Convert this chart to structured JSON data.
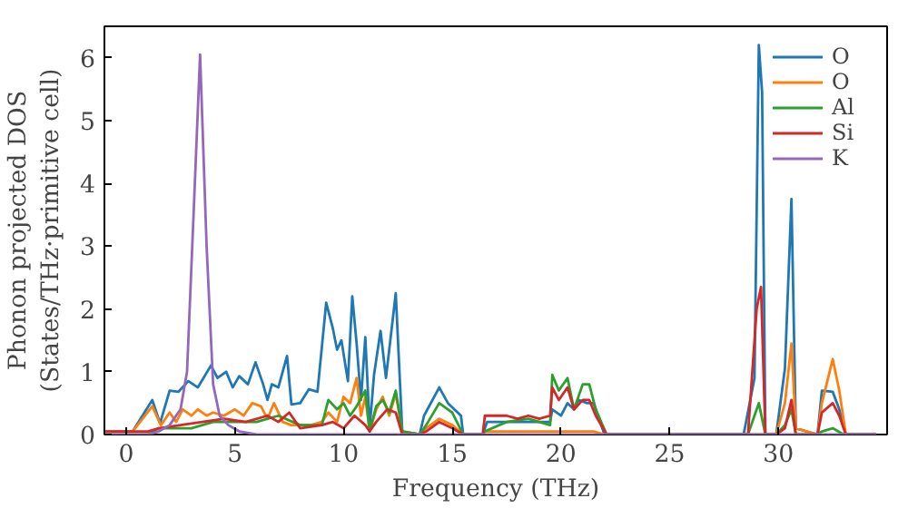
{
  "chart_data": {
    "type": "line",
    "xlabel": "Frequency (THz)",
    "ylabel": "Phonon projected DOS\n(States/THz·primitive cell)",
    "xlim": [
      -1,
      35
    ],
    "ylim": [
      0,
      6.5
    ],
    "xticks": [
      0,
      5,
      10,
      15,
      20,
      25,
      30
    ],
    "yticks": [
      0,
      1,
      2,
      3,
      4,
      5,
      6
    ],
    "grid": false,
    "legend": "top right",
    "marker": "none",
    "line_style": "solid",
    "series": [
      {
        "name": "O",
        "color": "#1f77b4",
        "x": [
          -0.95,
          0.3,
          1.2,
          1.56,
          2.0,
          2.4,
          2.86,
          3.3,
          3.9,
          4.2,
          4.6,
          4.9,
          5.2,
          5.6,
          5.95,
          6.3,
          6.5,
          6.7,
          7.0,
          7.4,
          7.6,
          8.0,
          8.4,
          8.8,
          9.2,
          9.5,
          9.7,
          9.9,
          10.2,
          10.4,
          10.6,
          10.8,
          11.0,
          11.2,
          11.4,
          11.7,
          11.95,
          12.4,
          12.7,
          13.5,
          13.7,
          14.4,
          14.8,
          15.4,
          15.5,
          16.4,
          16.6,
          17.5,
          18.5,
          19.5,
          19.6,
          20.0,
          20.3,
          20.6,
          20.8,
          21.2,
          21.5,
          22.0,
          28.4,
          28.9,
          29.1,
          29.25,
          29.4,
          29.9,
          30.3,
          30.6,
          30.8,
          31.8,
          32.0,
          32.5,
          32.8,
          33.1,
          34.5
        ],
        "values": [
          0.05,
          0.05,
          0.55,
          0.18,
          0.7,
          0.68,
          0.85,
          0.75,
          1.1,
          0.9,
          1.0,
          0.75,
          0.93,
          0.8,
          1.15,
          0.8,
          0.55,
          0.8,
          0.75,
          1.25,
          0.48,
          0.5,
          0.72,
          0.68,
          2.1,
          1.7,
          1.35,
          1.5,
          0.85,
          2.2,
          1.45,
          0.55,
          1.55,
          0.1,
          0.95,
          1.65,
          0.9,
          2.25,
          0.05,
          0.0,
          0.3,
          0.75,
          0.5,
          0.3,
          0.0,
          0.0,
          0.2,
          0.2,
          0.2,
          0.2,
          0.4,
          0.3,
          0.5,
          0.4,
          0.55,
          0.5,
          0.5,
          0.0,
          0.0,
          0.9,
          6.2,
          5.45,
          0.0,
          0.0,
          1.05,
          3.75,
          0.1,
          0.0,
          0.7,
          0.68,
          0.4,
          0.0,
          0.0
        ]
      },
      {
        "name": "O",
        "color": "#ff7f0e",
        "x": [
          -0.95,
          0.3,
          1.2,
          1.6,
          2.0,
          2.3,
          2.6,
          3.0,
          3.3,
          3.7,
          4.0,
          4.5,
          5.0,
          5.4,
          5.8,
          6.2,
          6.5,
          6.8,
          7.2,
          7.6,
          8.5,
          9.0,
          9.3,
          9.7,
          10.0,
          10.3,
          10.6,
          10.8,
          11.0,
          11.2,
          11.5,
          11.8,
          12.1,
          12.4,
          12.7,
          13.5,
          13.8,
          14.4,
          15.0,
          15.5,
          16.4,
          16.5,
          19.5,
          20.0,
          21.5,
          22.0,
          29.9,
          30.3,
          30.6,
          30.8,
          31.8,
          32.0,
          32.5,
          32.8,
          33.1,
          34.5
        ],
        "values": [
          0.05,
          0.05,
          0.45,
          0.15,
          0.35,
          0.2,
          0.4,
          0.3,
          0.4,
          0.3,
          0.35,
          0.3,
          0.4,
          0.3,
          0.5,
          0.45,
          0.25,
          0.5,
          0.2,
          0.15,
          0.15,
          0.2,
          0.35,
          0.2,
          0.6,
          0.5,
          0.9,
          0.3,
          0.6,
          0.05,
          0.4,
          0.6,
          0.3,
          0.65,
          0.05,
          0.0,
          0.1,
          0.25,
          0.15,
          0.0,
          0.0,
          0.05,
          0.05,
          0.05,
          0.05,
          0.0,
          0.0,
          0.5,
          1.45,
          0.1,
          0.0,
          0.5,
          1.2,
          0.7,
          0.0,
          0.0
        ]
      },
      {
        "name": "Al",
        "color": "#2ca02c",
        "x": [
          -0.95,
          1.0,
          1.5,
          3.0,
          4.0,
          5.0,
          6.0,
          7.0,
          8.0,
          9.0,
          9.3,
          9.7,
          10.0,
          10.3,
          10.6,
          11.0,
          11.2,
          11.5,
          11.8,
          12.1,
          12.4,
          12.7,
          13.5,
          13.8,
          14.4,
          15.0,
          15.5,
          16.4,
          16.5,
          17.5,
          18.5,
          19.5,
          19.6,
          19.9,
          20.3,
          20.6,
          21.0,
          21.3,
          21.6,
          22.1,
          28.6,
          29.1,
          29.4,
          29.9,
          30.3,
          30.6,
          30.8,
          31.8,
          32.0,
          32.5,
          33.0,
          34.5
        ],
        "values": [
          0.0,
          0.0,
          0.1,
          0.1,
          0.2,
          0.2,
          0.2,
          0.3,
          0.15,
          0.15,
          0.55,
          0.4,
          0.5,
          0.3,
          0.45,
          0.7,
          0.05,
          0.45,
          0.55,
          0.35,
          0.7,
          0.05,
          0.0,
          0.15,
          0.5,
          0.35,
          0.0,
          0.0,
          0.05,
          0.2,
          0.25,
          0.15,
          0.95,
          0.7,
          0.9,
          0.4,
          0.8,
          0.8,
          0.4,
          0.0,
          0.0,
          0.5,
          0.0,
          0.0,
          0.15,
          0.4,
          0.0,
          0.0,
          0.05,
          0.1,
          0.0,
          0.0
        ]
      },
      {
        "name": "Si",
        "color": "#d62728",
        "x": [
          -0.95,
          1.0,
          1.5,
          2.5,
          3.5,
          4.5,
          5.5,
          6.5,
          7.0,
          7.5,
          8.0,
          9.0,
          9.5,
          10.0,
          10.5,
          11.0,
          11.2,
          11.5,
          12.0,
          12.4,
          12.7,
          13.5,
          13.8,
          14.4,
          15.0,
          15.5,
          16.4,
          16.5,
          17.0,
          17.5,
          18.0,
          18.5,
          19.0,
          19.5,
          19.6,
          19.9,
          20.3,
          20.6,
          21.0,
          21.3,
          21.6,
          22.1,
          28.6,
          29.0,
          29.2,
          29.4,
          29.9,
          30.3,
          30.6,
          30.8,
          31.8,
          32.0,
          32.5,
          32.8,
          33.1,
          34.5
        ],
        "values": [
          0.05,
          0.05,
          0.1,
          0.15,
          0.2,
          0.25,
          0.2,
          0.3,
          0.2,
          0.35,
          0.1,
          0.15,
          0.2,
          0.1,
          0.3,
          0.15,
          0.05,
          0.2,
          0.4,
          0.35,
          0.0,
          0.0,
          0.05,
          0.2,
          0.1,
          0.0,
          0.0,
          0.3,
          0.3,
          0.3,
          0.25,
          0.3,
          0.25,
          0.3,
          0.75,
          0.55,
          0.75,
          0.4,
          0.55,
          0.55,
          0.3,
          0.0,
          0.0,
          2.0,
          2.35,
          0.0,
          0.0,
          0.1,
          0.55,
          0.0,
          0.0,
          0.35,
          0.5,
          0.3,
          0.0,
          0.0
        ]
      },
      {
        "name": "K",
        "color": "#9467bd",
        "x": [
          -0.95,
          1.0,
          1.5,
          2.0,
          2.5,
          2.8,
          3.1,
          3.4,
          3.7,
          4.0,
          4.3,
          4.7,
          5.2,
          6.0,
          34.5
        ],
        "values": [
          0.0,
          0.0,
          0.05,
          0.15,
          0.4,
          1.0,
          3.5,
          6.05,
          3.0,
          0.8,
          0.3,
          0.15,
          0.05,
          0.0,
          0.0
        ]
      }
    ]
  }
}
